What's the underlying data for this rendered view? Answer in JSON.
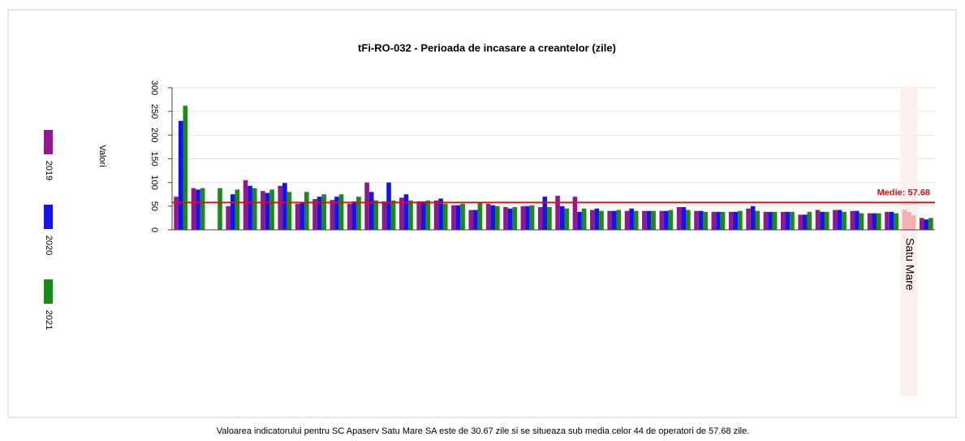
{
  "chart_data": {
    "type": "bar",
    "title": "tFi-RO-032 - Perioada de incasare a creantelor (zile)",
    "y_label": "Valori",
    "categories": [
      null,
      null,
      null,
      null,
      null,
      null,
      null,
      null,
      null,
      null,
      null,
      null,
      null,
      null,
      null,
      null,
      null,
      null,
      null,
      null,
      null,
      null,
      null,
      null,
      null,
      null,
      null,
      null,
      null,
      null,
      null,
      null,
      null,
      null,
      null,
      null,
      null,
      null,
      null,
      null,
      null,
      null,
      "Satu Mare",
      null
    ],
    "series": [
      {
        "name": "2019",
        "color": "#8e1a8e",
        "values": [
          70,
          88,
          null,
          50,
          105,
          82,
          93,
          55,
          65,
          63,
          55,
          100,
          60,
          68,
          60,
          62,
          52,
          42,
          55,
          48,
          50,
          48,
          72,
          70,
          42,
          40,
          40,
          40,
          40,
          48,
          40,
          38,
          38,
          45,
          38,
          38,
          32,
          42,
          42,
          40,
          35,
          38,
          42,
          25
        ]
      },
      {
        "name": "2020",
        "color": "#1414e6",
        "values": [
          230,
          85,
          null,
          75,
          93,
          78,
          99,
          58,
          70,
          70,
          60,
          80,
          100,
          75,
          60,
          66,
          52,
          42,
          52,
          45,
          50,
          70,
          50,
          38,
          45,
          40,
          45,
          40,
          40,
          48,
          40,
          38,
          38,
          50,
          38,
          38,
          32,
          38,
          42,
          40,
          35,
          38,
          38,
          22
        ]
      },
      {
        "name": "2021",
        "color": "#1a8a1a",
        "values": [
          262,
          88,
          88,
          85,
          88,
          85,
          80,
          80,
          75,
          75,
          70,
          62,
          62,
          62,
          62,
          55,
          55,
          58,
          50,
          48,
          52,
          48,
          45,
          45,
          40,
          42,
          40,
          40,
          42,
          42,
          38,
          38,
          40,
          40,
          38,
          38,
          38,
          38,
          38,
          35,
          35,
          35,
          30.67,
          25
        ]
      }
    ],
    "highlight_color": "#f4b0b0",
    "ylim": [
      0,
      300
    ],
    "yticks": [
      0,
      50,
      100,
      150,
      200,
      250,
      300
    ],
    "grid": true,
    "reference_line": {
      "value": 57.68,
      "label": "Medie: 57.68",
      "color": "#e01010"
    },
    "caption": "Valoarea indicatorului pentru SC Apaserv Satu Mare SA este de 30.67 zile  si se situeaza sub media celor 44 de operatori de 57.68 zile."
  }
}
